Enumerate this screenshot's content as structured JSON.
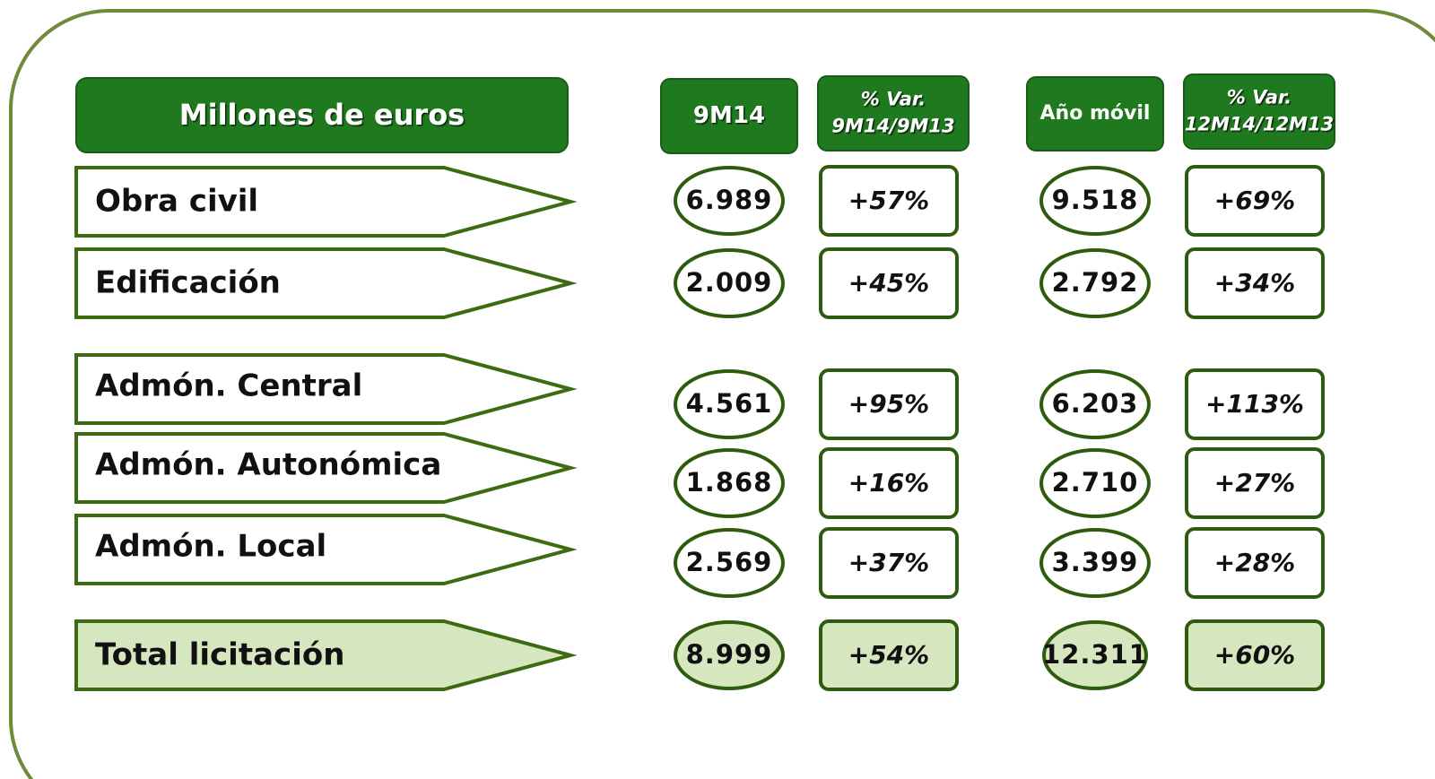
{
  "header": {
    "title": "Millones de euros",
    "columns": [
      [
        "9M14"
      ],
      [
        "% Var.",
        "9M14/9M13"
      ],
      [
        "Año móvil"
      ],
      [
        "% Var.",
        "12M14/12M13"
      ]
    ]
  },
  "rows": [
    {
      "label": "Obra civil",
      "values": [
        "6.989",
        "+57%",
        "9.518",
        "+69%"
      ]
    },
    {
      "label": "Edificación",
      "values": [
        "2.009",
        "+45%",
        "2.792",
        "+34%"
      ]
    },
    {
      "label": "Admón. Central",
      "values": [
        "4.561",
        "+95%",
        "6.203",
        "+113%"
      ]
    },
    {
      "label": "Admón. Autonómica",
      "values": [
        "1.868",
        "+16%",
        "2.710",
        "+27%"
      ]
    },
    {
      "label": "Admón. Local",
      "values": [
        "2.569",
        "+37%",
        "3.399",
        "+28%"
      ]
    },
    {
      "label": "Total licitación",
      "values": [
        "8.999",
        "+54%",
        "12.311",
        "+60%"
      ]
    }
  ]
}
